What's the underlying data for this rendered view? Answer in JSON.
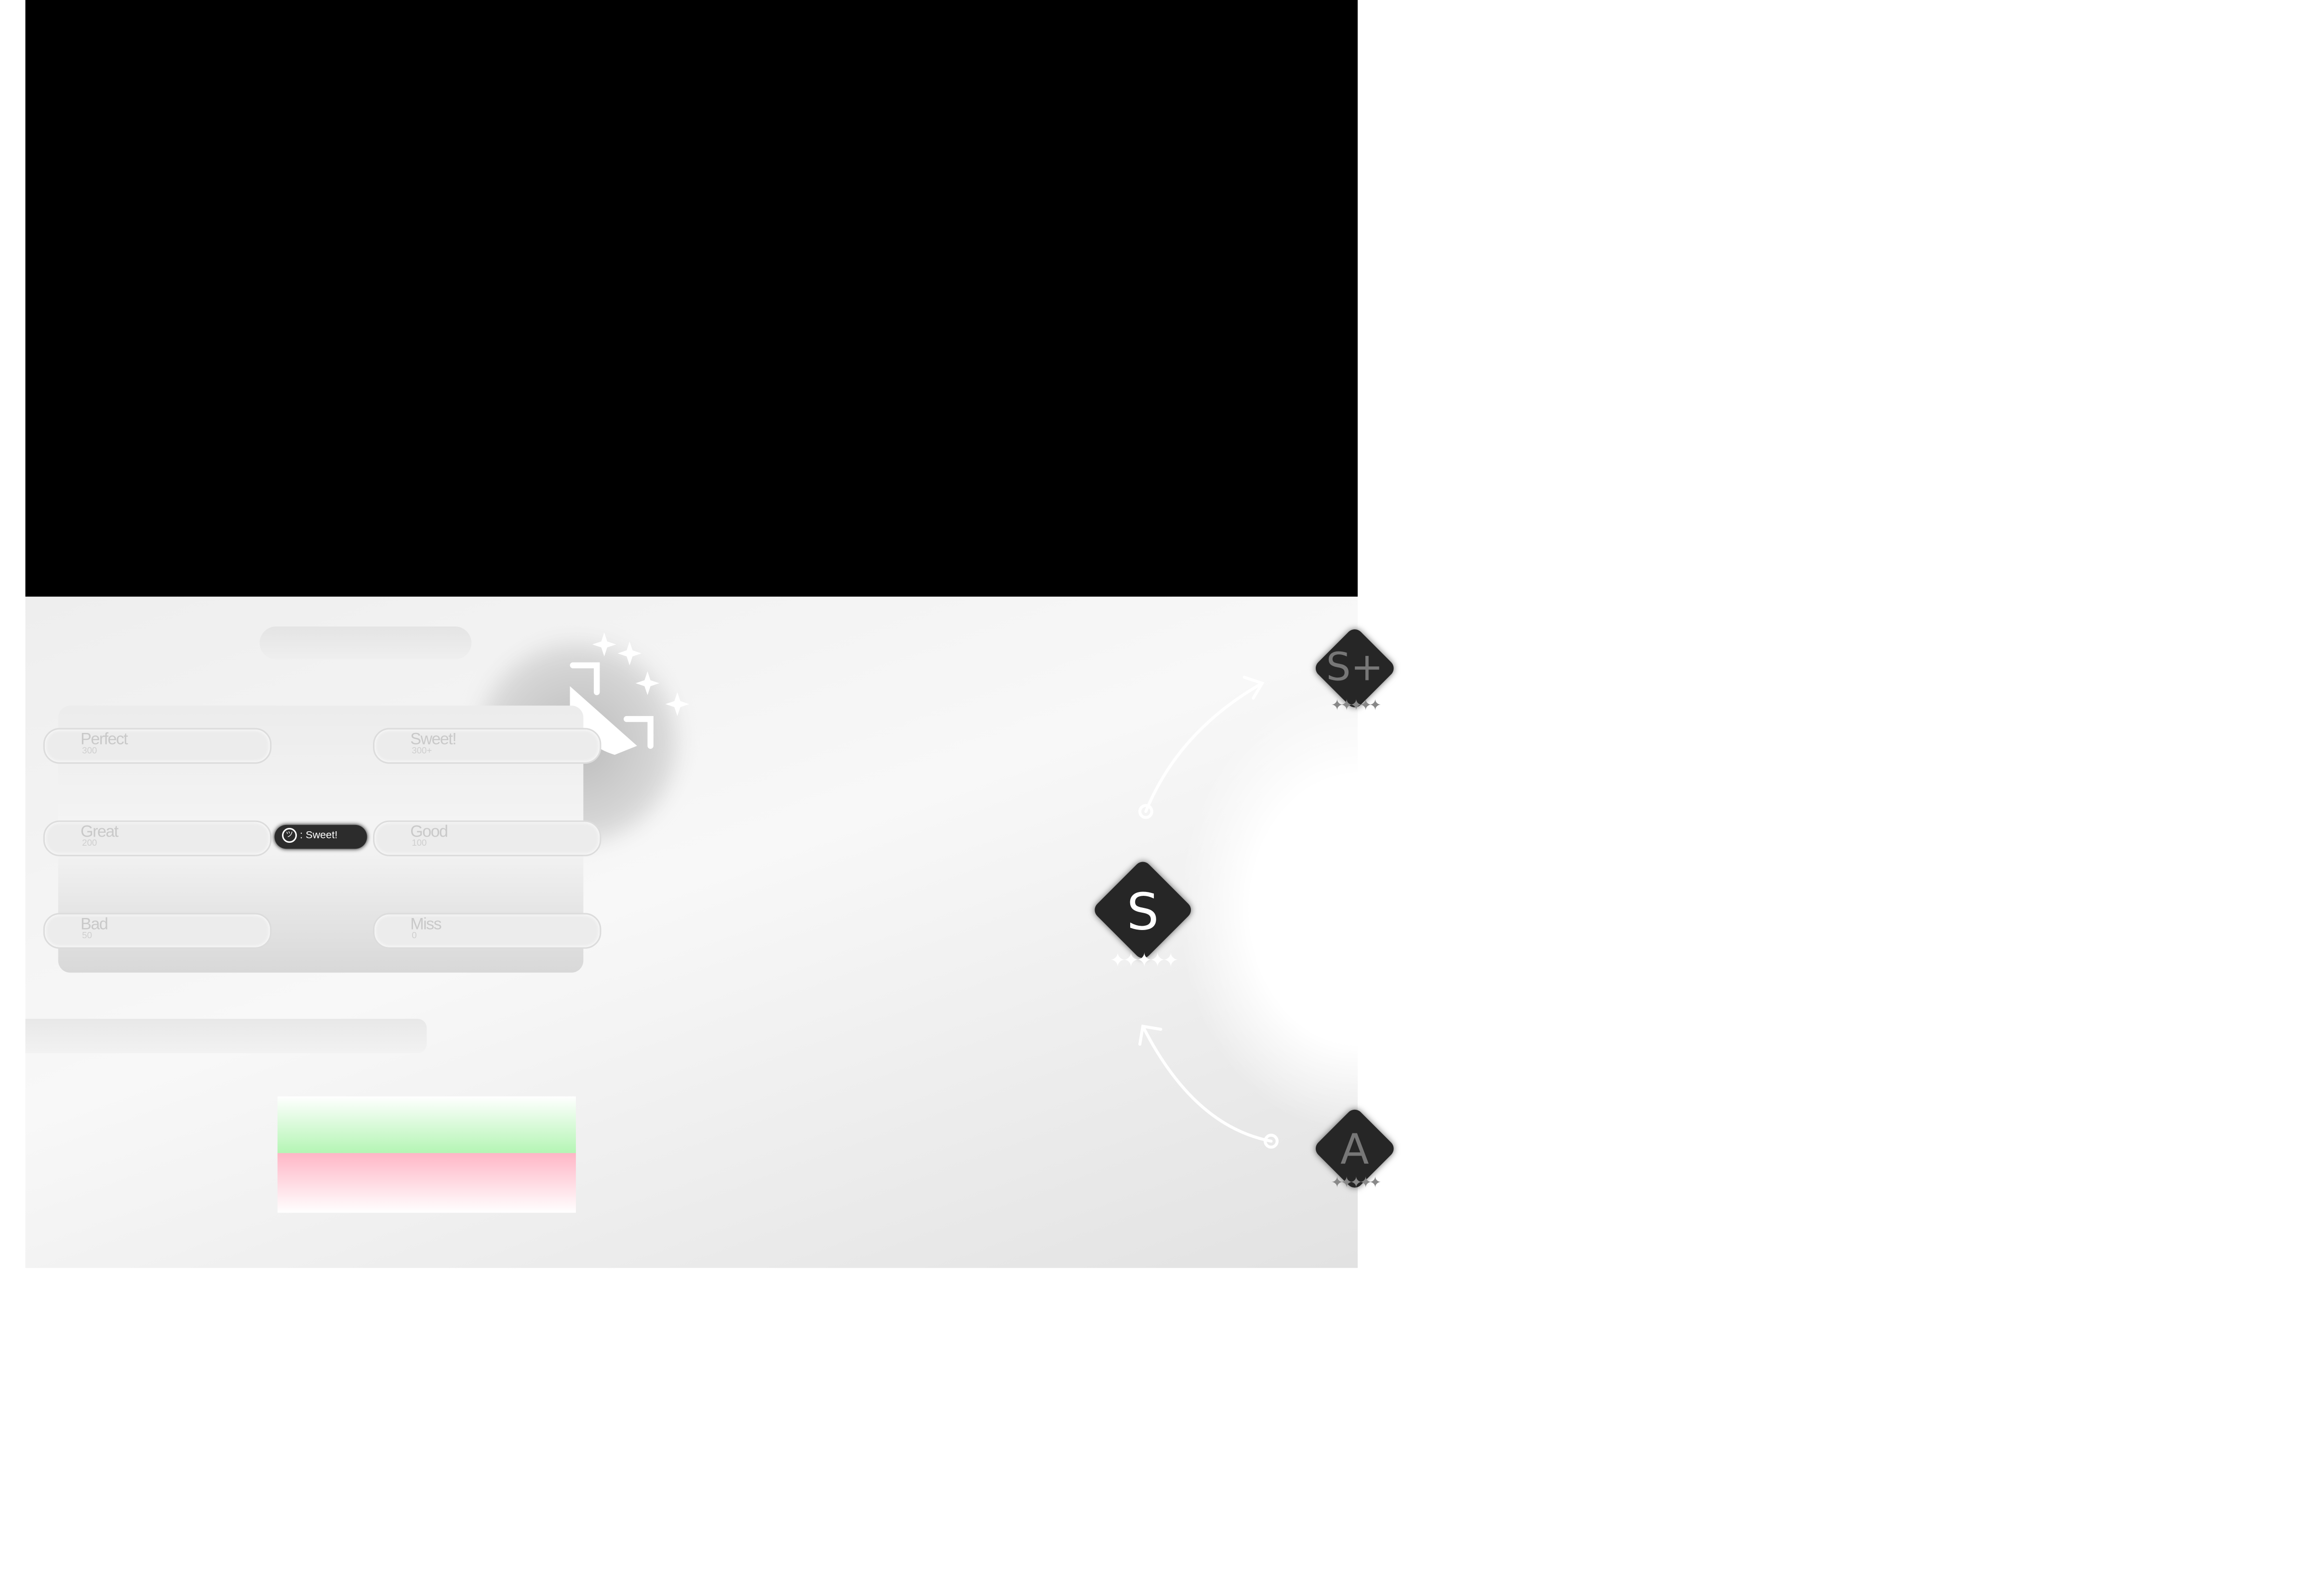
{
  "judgements": [
    {
      "label": "Perfect",
      "points": "300"
    },
    {
      "label": "Sweet!",
      "points": "300+"
    },
    {
      "label": "Great",
      "points": "200"
    },
    {
      "label": "Good",
      "points": "100"
    },
    {
      "label": "Bad",
      "points": "50"
    },
    {
      "label": "Miss",
      "points": "0"
    }
  ],
  "badge": {
    "icon": "smiley-icon",
    "face": "ツ",
    "text": ": Sweet!"
  },
  "ranks": {
    "upper": "S+",
    "current": "S",
    "lower": "A",
    "stars": "✦✦✦✦✦"
  },
  "colors": {
    "hit_bar": "#b4f5b4",
    "miss_bar": "#ffb6c6",
    "rank_tile": "#262626"
  }
}
